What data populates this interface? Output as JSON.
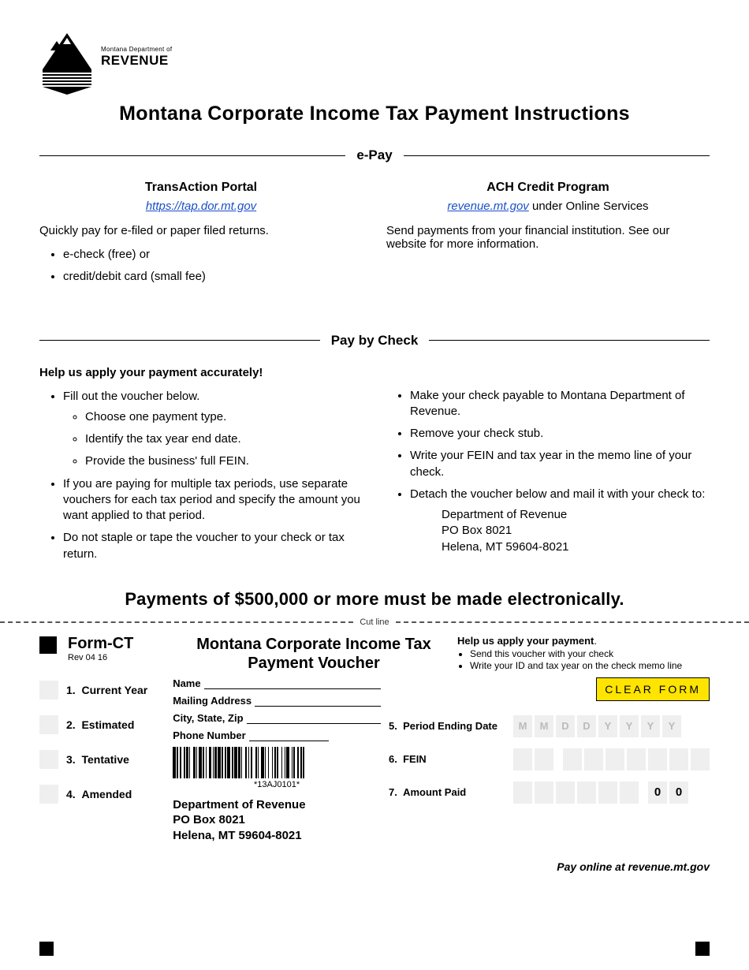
{
  "logo": {
    "dept": "Montana Department of",
    "revenue": "REVENUE"
  },
  "title": "Montana Corporate Income Tax Payment Instructions",
  "section_epay": {
    "label": "e-Pay",
    "left": {
      "heading": "TransAction Portal",
      "link": "https://tap.dor.mt.gov",
      "desc": "Quickly pay for e-filed or paper filed returns.",
      "bullets": [
        "e-check (free) or",
        "credit/debit card (small fee)"
      ]
    },
    "right": {
      "heading": "ACH Credit Program",
      "link": "revenue.mt.gov",
      "link_suffix": " under Online Services",
      "desc": "Send payments from your financial institution. See our website for more information."
    }
  },
  "section_check": {
    "label": "Pay by Check",
    "help_heading": "Help us apply your payment accurately!",
    "left_bullets": [
      "Fill out the voucher below.",
      "If you are paying for multiple tax periods, use separate vouchers for each tax period and specify the amount you want applied to that period.",
      "Do not staple or tape the voucher to your check or tax return."
    ],
    "left_sub": [
      "Choose one payment type.",
      "Identify the tax year end date.",
      "Provide the business' full FEIN."
    ],
    "right_bullets": [
      "Make your check payable to Montana Department of Revenue.",
      "Remove your check stub.",
      "Write your FEIN and tax year in the memo line of your check.",
      "Detach the voucher below and mail it with your check to:"
    ],
    "mail_to": [
      "Department of Revenue",
      "PO Box 8021",
      "Helena, MT 59604-8021"
    ]
  },
  "notice": "Payments of $500,000 or more must be made electronically.",
  "cutline": "Cut line",
  "voucher": {
    "form": "Form-CT",
    "rev": "Rev 04 16",
    "title_l1": "Montana Corporate Income Tax",
    "title_l2": "Payment Voucher",
    "help_title": "Help us apply your payment",
    "help_items": [
      "Send this voucher with your check",
      "Write your ID and tax year on the check memo line"
    ],
    "clear_btn": "CLEAR FORM",
    "checks": [
      {
        "n": "1.",
        "label": "Current Year"
      },
      {
        "n": "2.",
        "label": "Estimated"
      },
      {
        "n": "3.",
        "label": "Tentative"
      },
      {
        "n": "4.",
        "label": "Amended"
      }
    ],
    "fields": [
      "Name",
      "Mailing Address",
      "City, State, Zip",
      "Phone Number"
    ],
    "barcode_text": "*13AJ0101*",
    "address": [
      "Department of Revenue",
      "PO Box 8021",
      "Helena, MT 59604-8021"
    ],
    "r5": {
      "n": "5.",
      "label": "Period Ending Date",
      "placeholder": [
        "M",
        "M",
        "D",
        "D",
        "Y",
        "Y",
        "Y",
        "Y"
      ]
    },
    "r6": {
      "n": "6.",
      "label": "FEIN"
    },
    "r7": {
      "n": "7.",
      "label": "Amount Paid",
      "suffix": [
        "0",
        "0"
      ]
    },
    "pay_online": "Pay online at revenue.mt.gov"
  }
}
